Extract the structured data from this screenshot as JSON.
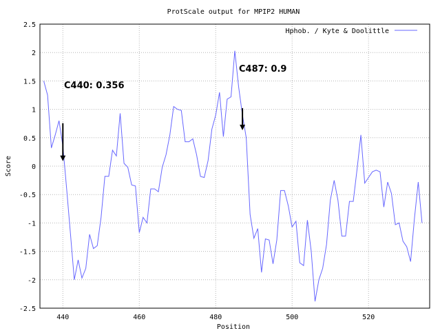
{
  "chart_data": {
    "type": "line",
    "title": "ProtScale output for MPIP2 HUMAN",
    "xlabel": "Position",
    "ylabel": "Score",
    "xlim": [
      434,
      536
    ],
    "ylim": [
      -2.5,
      2.5
    ],
    "xticks": [
      440,
      460,
      480,
      500,
      520
    ],
    "yticks": [
      2.5,
      2,
      1.5,
      1,
      0.5,
      0,
      -0.5,
      -1,
      -1.5,
      -2,
      -2.5
    ],
    "xtick_labels": [
      "440",
      "460",
      "480",
      "500",
      "520"
    ],
    "ytick_labels": [
      "2.5",
      "2",
      "1.5",
      "1",
      "0.5",
      "0",
      "-0.5",
      "-1",
      "-1.5",
      "-2",
      "-2.5"
    ],
    "grid": true,
    "legend_position": "top-right",
    "line_color": "#6666ff",
    "series": [
      {
        "name": "Hphob. / Kyte & Doolittle",
        "x": [
          435,
          436,
          437,
          438,
          439,
          440,
          441,
          442,
          443,
          444,
          445,
          446,
          447,
          448,
          449,
          450,
          451,
          452,
          453,
          454,
          455,
          456,
          457,
          458,
          459,
          460,
          461,
          462,
          463,
          464,
          465,
          466,
          467,
          468,
          469,
          470,
          471,
          472,
          473,
          474,
          475,
          476,
          477,
          478,
          479,
          480,
          481,
          482,
          483,
          484,
          485,
          486,
          487,
          488,
          489,
          490,
          491,
          492,
          493,
          494,
          495,
          496,
          497,
          498,
          499,
          500,
          501,
          502,
          503,
          504,
          505,
          506,
          507,
          508,
          509,
          510,
          511,
          512,
          513,
          514,
          515,
          516,
          517,
          518,
          519,
          520,
          521,
          522,
          523,
          524,
          525,
          526,
          527,
          528,
          529,
          530,
          531,
          532,
          533,
          534
        ],
        "y": [
          1.5,
          1.25,
          0.32,
          0.55,
          0.8,
          0.356,
          -0.4,
          -1.2,
          -2.0,
          -1.65,
          -1.97,
          -1.8,
          -1.2,
          -1.45,
          -1.4,
          -0.9,
          -0.18,
          -0.18,
          0.28,
          0.18,
          0.93,
          0.05,
          -0.02,
          -0.33,
          -0.35,
          -1.17,
          -0.9,
          -1.0,
          -0.4,
          -0.4,
          -0.45,
          -0.02,
          0.2,
          0.55,
          1.05,
          1.0,
          0.98,
          0.43,
          0.43,
          0.48,
          0.2,
          -0.18,
          -0.2,
          0.1,
          0.65,
          0.9,
          1.3,
          0.52,
          1.18,
          1.22,
          2.03,
          1.4,
          0.9,
          0.5,
          -0.85,
          -1.27,
          -1.1,
          -1.87,
          -1.28,
          -1.3,
          -1.72,
          -1.3,
          -0.43,
          -0.43,
          -0.7,
          -1.07,
          -0.97,
          -1.7,
          -1.75,
          -0.95,
          -1.5,
          -2.38,
          -2.0,
          -1.8,
          -1.38,
          -0.6,
          -0.25,
          -0.6,
          -1.23,
          -1.23,
          -0.62,
          -0.62,
          -0.05,
          0.55,
          -0.3,
          -0.2,
          -0.1,
          -0.07,
          -0.1,
          -0.72,
          -0.28,
          -0.48,
          -1.03,
          -1.0,
          -1.32,
          -1.42,
          -1.68,
          -0.93,
          -0.28,
          -1.0
        ]
      }
    ],
    "annotations": [
      {
        "text": "C440: 0.356",
        "x": 440,
        "y": 0.356
      },
      {
        "text": "C487: 0.9",
        "x": 487,
        "y": 0.9
      }
    ]
  }
}
